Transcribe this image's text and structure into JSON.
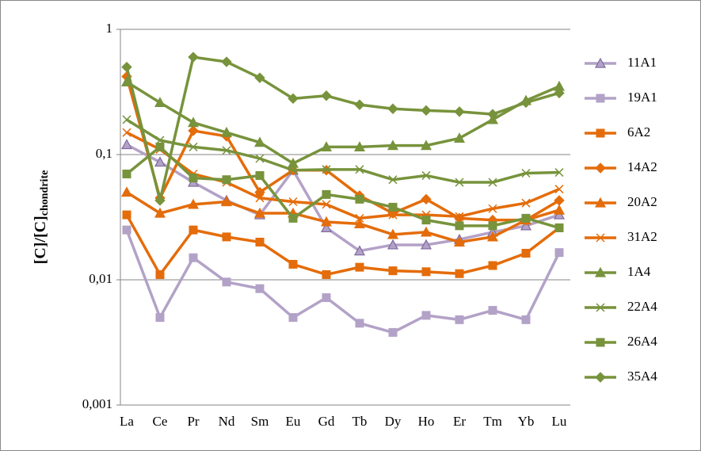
{
  "chart_data": {
    "type": "line",
    "ylabel": [
      "[C]/[C]",
      "chondrite"
    ],
    "categories": [
      "La",
      "Ce",
      "Pr",
      "Nd",
      "Sm",
      "Eu",
      "Gd",
      "Tb",
      "Dy",
      "Ho",
      "Er",
      "Tm",
      "Yb",
      "Lu"
    ],
    "ylim": [
      0.001,
      1
    ],
    "log_y": true,
    "grid": true,
    "legend": "right",
    "yticks": [
      {
        "value": 0.001,
        "label": "0,001"
      },
      {
        "value": 0.01,
        "label": "0,01"
      },
      {
        "value": 0.1,
        "label": "0,1"
      },
      1
    ],
    "series": [
      {
        "name": "11A1",
        "color": "#b3a2c7",
        "edge": "#7f6a9f",
        "marker": "triangle",
        "values": [
          0.12,
          0.087,
          0.06,
          0.043,
          0.033,
          0.075,
          0.026,
          0.017,
          0.019,
          0.019,
          0.021,
          0.024,
          0.027,
          0.033
        ]
      },
      {
        "name": "19A1",
        "color": "#b3a2c7",
        "edge": "#b3a2c7",
        "marker": "square",
        "values": [
          0.025,
          0.005,
          0.015,
          0.0096,
          0.0085,
          0.005,
          0.0072,
          0.0045,
          0.0038,
          0.0052,
          0.0048,
          0.0057,
          0.0048,
          0.0165
        ]
      },
      {
        "name": "6A2",
        "color": "#e46c0a",
        "edge": "#e46c0a",
        "marker": "square",
        "values": [
          0.033,
          0.011,
          0.025,
          0.022,
          0.02,
          0.0133,
          0.011,
          0.0126,
          0.0118,
          0.0116,
          0.0112,
          0.013,
          0.0163,
          0.026
        ]
      },
      {
        "name": "14A2",
        "color": "#e46c0a",
        "edge": "#e46c0a",
        "marker": "diamond",
        "values": [
          0.42,
          0.045,
          0.155,
          0.14,
          0.05,
          0.075,
          0.075,
          0.047,
          0.034,
          0.044,
          0.031,
          0.03,
          0.03,
          0.043
        ]
      },
      {
        "name": "20A2",
        "color": "#e46c0a",
        "edge": "#e46c0a",
        "marker": "triangle",
        "values": [
          0.05,
          0.034,
          0.04,
          0.042,
          0.034,
          0.034,
          0.029,
          0.028,
          0.023,
          0.024,
          0.02,
          0.022,
          0.03,
          0.036
        ]
      },
      {
        "name": "31A2",
        "color": "#e46c0a",
        "edge": "#e46c0a",
        "marker": "x",
        "values": [
          0.15,
          0.11,
          0.07,
          0.06,
          0.045,
          0.042,
          0.04,
          0.031,
          0.033,
          0.033,
          0.032,
          0.037,
          0.041,
          0.053
        ]
      },
      {
        "name": "1A4",
        "color": "#77933c",
        "edge": "#77933c",
        "marker": "triangle",
        "values": [
          0.38,
          0.26,
          0.18,
          0.15,
          0.125,
          0.085,
          0.115,
          0.115,
          0.118,
          0.118,
          0.135,
          0.19,
          0.27,
          0.35
        ]
      },
      {
        "name": "22A4",
        "color": "#77933c",
        "edge": "#77933c",
        "marker": "x",
        "values": [
          0.19,
          0.13,
          0.115,
          0.108,
          0.093,
          0.075,
          0.076,
          0.076,
          0.063,
          0.068,
          0.06,
          0.06,
          0.071,
          0.072
        ]
      },
      {
        "name": "26A4",
        "color": "#77933c",
        "edge": "#77933c",
        "marker": "square",
        "values": [
          0.07,
          0.115,
          0.065,
          0.063,
          0.068,
          0.031,
          0.048,
          0.044,
          0.038,
          0.03,
          0.027,
          0.027,
          0.031,
          0.026
        ]
      },
      {
        "name": "35A4",
        "color": "#77933c",
        "edge": "#77933c",
        "marker": "diamond",
        "values": [
          0.5,
          0.043,
          0.6,
          0.55,
          0.41,
          0.28,
          0.295,
          0.25,
          0.232,
          0.225,
          0.22,
          0.21,
          0.26,
          0.31
        ]
      }
    ]
  }
}
